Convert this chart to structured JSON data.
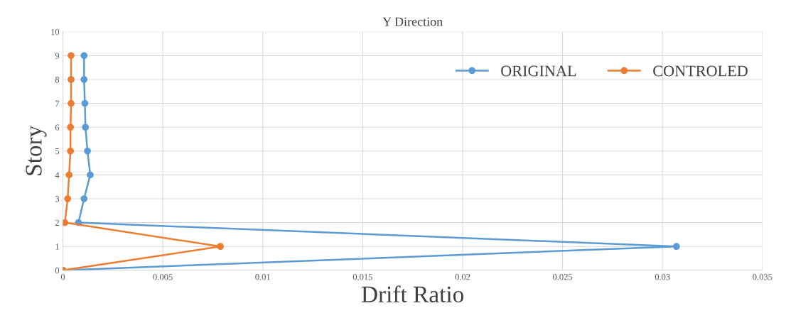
{
  "chart_data": {
    "type": "line",
    "title": "Y Direction",
    "xlabel": "Drift Ratio",
    "ylabel": "Story",
    "series": [
      {
        "name": "ORIGINAL",
        "color": "#5b9bd5",
        "x": [
          0,
          0.0307,
          0.00078,
          0.00106,
          0.00137,
          0.00123,
          0.00113,
          0.0011,
          0.00106,
          0.00106
        ],
        "values": [
          0,
          1,
          2,
          3,
          4,
          5,
          6,
          7,
          8,
          9
        ]
      },
      {
        "name": "CONTROLED",
        "color": "#ed7d31",
        "x": [
          0,
          0.00788,
          0.0001,
          0.00024,
          0.00031,
          0.00038,
          0.00038,
          0.00041,
          0.00041,
          0.00041
        ],
        "values": [
          0,
          1,
          2,
          3,
          4,
          5,
          6,
          7,
          8,
          9
        ]
      }
    ],
    "xlim": [
      0,
      0.035
    ],
    "xticks": [
      0,
      0.005,
      0.01,
      0.015,
      0.02,
      0.025,
      0.03,
      0.035
    ],
    "ylim": [
      0,
      10
    ],
    "yticks": [
      0,
      1,
      2,
      3,
      4,
      5,
      6,
      7,
      8,
      9,
      10
    ],
    "grid": true,
    "legend": "top right",
    "marker": "circle",
    "line_style": "solid"
  }
}
